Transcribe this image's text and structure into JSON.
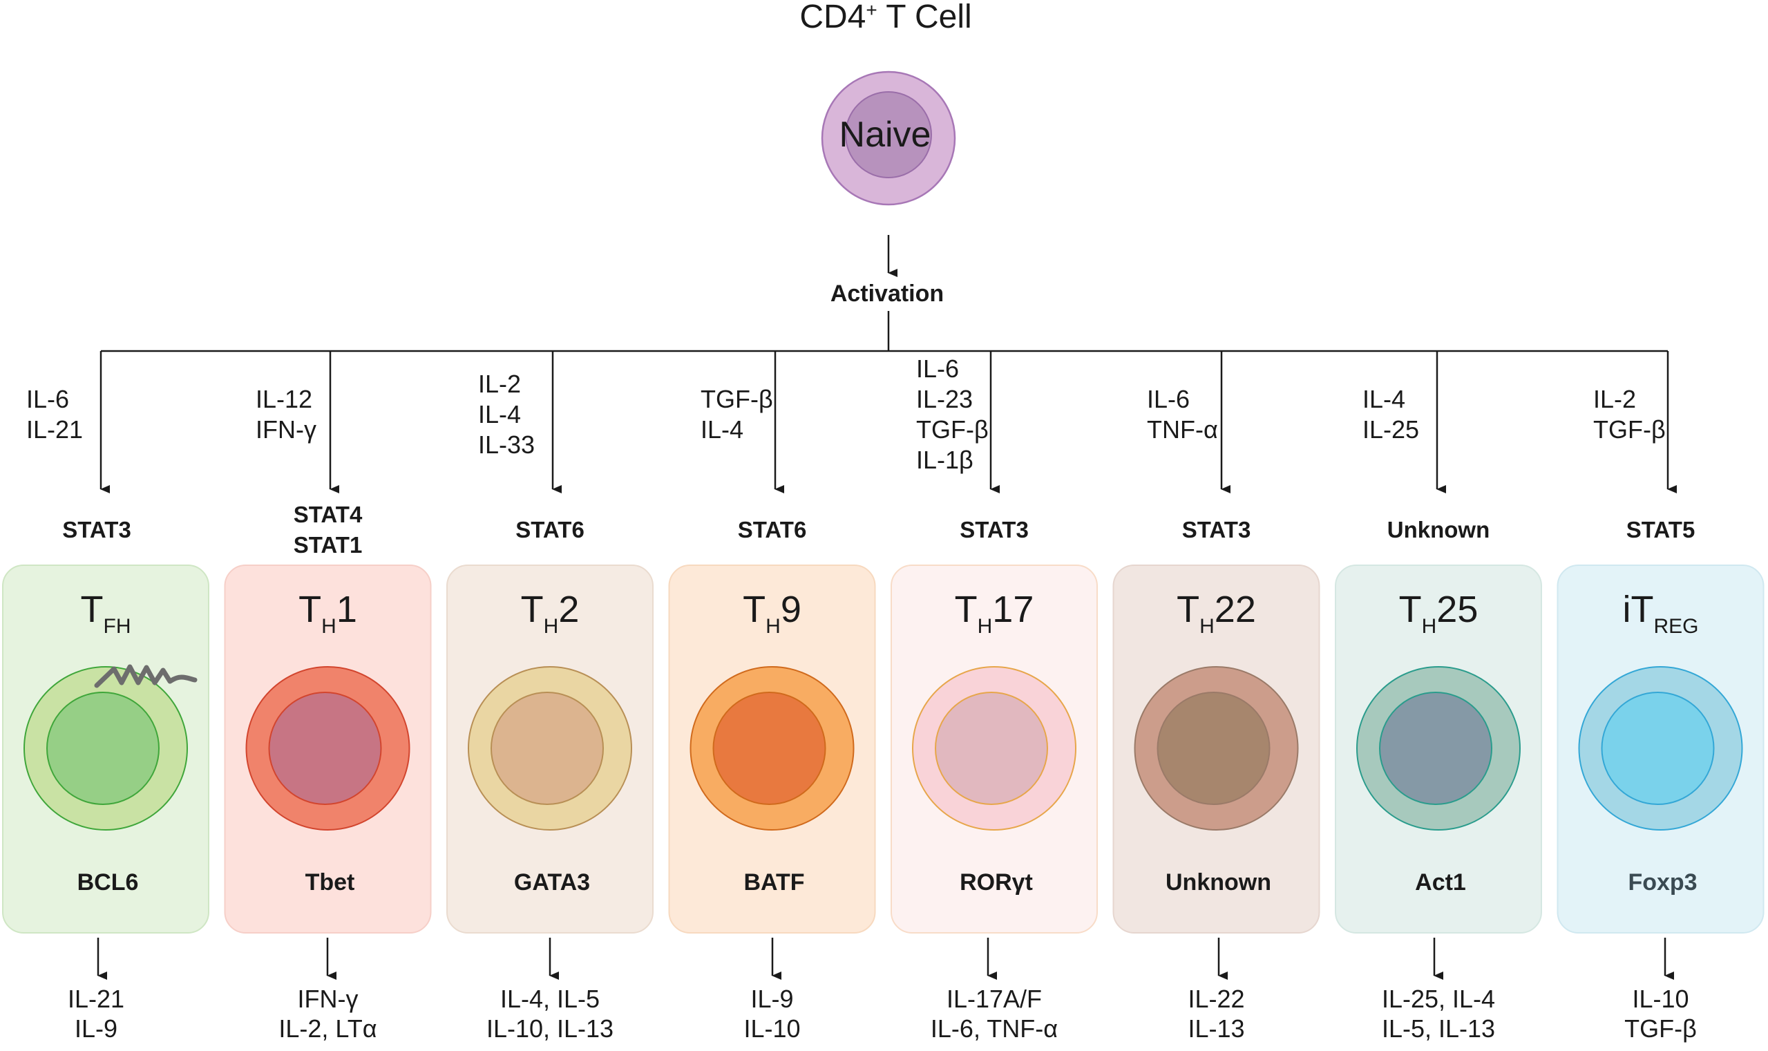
{
  "title": {
    "prefix": "CD4",
    "sup": "+",
    "suffix": " T Cell"
  },
  "naive_label": "Naive",
  "activation_label": "Activation",
  "subsets": [
    {
      "main": "T",
      "sub": "FH",
      "post": "",
      "inputs": [
        "IL-6",
        "IL-21"
      ],
      "stat": [
        "STAT3"
      ],
      "tf": "BCL6",
      "outputs": [
        "IL-21",
        "IL-9"
      ],
      "colors": {
        "card": "#e6f3df",
        "card_border": "#cfe6c4",
        "outer": "#c9e2a4",
        "inner": "#96cf86",
        "stroke": "#3fa63a",
        "tf_text": "#1a1a1a"
      }
    },
    {
      "main": "T",
      "sub": "H",
      "post": "1",
      "inputs": [
        "IL-12",
        "IFN-γ"
      ],
      "stat": [
        "STAT4",
        "STAT1"
      ],
      "tf": "Tbet",
      "outputs": [
        "IFN-γ",
        "IL-2, LTα"
      ],
      "colors": {
        "card": "#fde1dc",
        "card_border": "#f6cfc8",
        "outer": "#f0836b",
        "inner": "#c77584",
        "stroke": "#d2452e",
        "tf_text": "#1a1a1a"
      }
    },
    {
      "main": "T",
      "sub": "H",
      "post": "2",
      "inputs": [
        "IL-2",
        "IL-4",
        "IL-33"
      ],
      "stat": [
        "STAT6"
      ],
      "tf": "GATA3",
      "outputs": [
        "IL-4, IL-5",
        "IL-10, IL-13"
      ],
      "colors": {
        "card": "#f5ebe3",
        "card_border": "#eadbcf",
        "outer": "#ead6a3",
        "inner": "#dcb48f",
        "stroke": "#b88f55",
        "tf_text": "#1a1a1a"
      }
    },
    {
      "main": "T",
      "sub": "H",
      "post": "9",
      "inputs": [
        "TGF-β",
        "IL-4"
      ],
      "stat": [
        "STAT6"
      ],
      "tf": "BATF",
      "outputs": [
        "IL-9",
        "IL-10"
      ],
      "colors": {
        "card": "#fde9d8",
        "card_border": "#f7d9bf",
        "outer": "#f8ac62",
        "inner": "#e8793f",
        "stroke": "#d06a1c",
        "tf_text": "#1a1a1a"
      }
    },
    {
      "main": "T",
      "sub": "H",
      "post": "17",
      "inputs": [
        "IL-6",
        "IL-23",
        "TGF-β",
        "IL-1β"
      ],
      "stat": [
        "STAT3"
      ],
      "tf": "RORγt",
      "outputs": [
        "IL-17A/F",
        "IL-6, TNF-α"
      ],
      "colors": {
        "card": "#fdf2f1",
        "card_border": "#f8dcc8",
        "outer": "#f9d3d8",
        "inner": "#e1b8bf",
        "stroke": "#e7a64a",
        "tf_text": "#1a1a1a"
      }
    },
    {
      "main": "T",
      "sub": "H",
      "post": "22",
      "inputs": [
        "IL-6",
        "TNF-α"
      ],
      "stat": [
        "STAT3"
      ],
      "tf": "Unknown",
      "outputs": [
        "IL-22",
        "IL-13"
      ],
      "colors": {
        "card": "#f1e6e1",
        "card_border": "#e6d6cf",
        "outer": "#cc9d8b",
        "inner": "#a7866d",
        "stroke": "#9a7a68",
        "tf_text": "#1a1a1a"
      }
    },
    {
      "main": "T",
      "sub": "H",
      "post": "25",
      "inputs": [
        "IL-4",
        "IL-25"
      ],
      "stat": [
        "Unknown"
      ],
      "tf": "Act1",
      "outputs": [
        "IL-25, IL-4",
        "IL-5, IL-13"
      ],
      "colors": {
        "card": "#e6f1ee",
        "card_border": "#d5e7e2",
        "outer": "#a7c9bd",
        "inner": "#8599a6",
        "stroke": "#2a9c8c",
        "tf_text": "#1a1a1a"
      }
    },
    {
      "main": "iT",
      "sub": "REG",
      "post": "",
      "inputs": [
        "IL-2",
        "TGF-β"
      ],
      "stat": [
        "STAT5"
      ],
      "tf": "Foxp3",
      "outputs": [
        "IL-10",
        "TGF-β"
      ],
      "colors": {
        "card": "#e3f3f8",
        "card_border": "#d0e8f0",
        "outer": "#a4d7e6",
        "inner": "#7ad2eb",
        "stroke": "#33a7d6",
        "tf_text": "#3a4a52"
      }
    }
  ]
}
